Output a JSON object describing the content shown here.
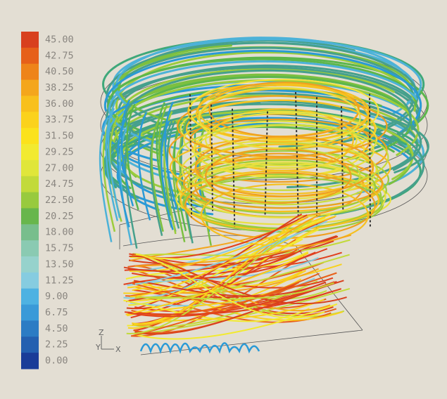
{
  "legend": {
    "labels": [
      "45.00",
      "42.75",
      "40.50",
      "38.25",
      "36.00",
      "33.75",
      "31.50",
      "29.25",
      "27.00",
      "24.75",
      "22.50",
      "20.25",
      "18.00",
      "15.75",
      "13.50",
      "11.25",
      "9.00",
      "6.75",
      "4.50",
      "2.25",
      "0.00"
    ],
    "colors": [
      "#d8401e",
      "#e6601a",
      "#ee841a",
      "#f4a61c",
      "#f8c01c",
      "#fbd21c",
      "#fbe21c",
      "#f2ea30",
      "#e0e63a",
      "#c2da3a",
      "#98ca3e",
      "#68b64c",
      "#78be8c",
      "#8acab2",
      "#96d2cc",
      "#86cce0",
      "#4eb2e2",
      "#3a9ad8",
      "#2c7cc4",
      "#2460b0",
      "#1a3c98"
    ]
  },
  "axes": {
    "z": "Z",
    "y": "Y",
    "x": "X"
  }
}
